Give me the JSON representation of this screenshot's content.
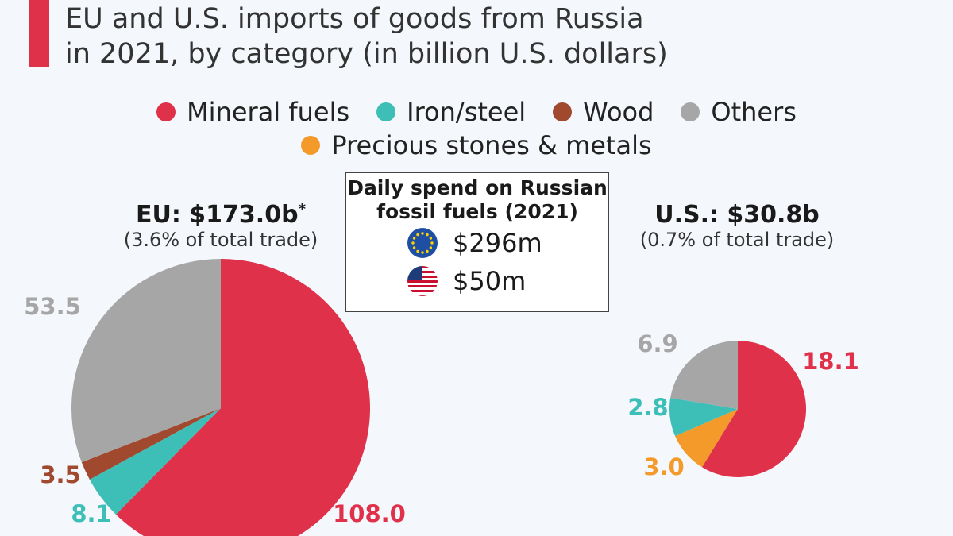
{
  "title": {
    "line1": "EU and U.S. imports of goods from Russia",
    "line2": "in 2021, by category (in billion U.S. dollars)"
  },
  "legend": [
    {
      "label": "Mineral fuels",
      "color": "#e0314a"
    },
    {
      "label": "Iron/steel",
      "color": "#3dbfb8"
    },
    {
      "label": "Wood",
      "color": "#a0492f"
    },
    {
      "label": "Others",
      "color": "#a6a6a6"
    },
    {
      "label": "Precious stones & metals",
      "color": "#f39a2b"
    }
  ],
  "info_box": {
    "title_line1": "Daily spend on Russian",
    "title_line2": "fossil fuels (2021)",
    "eu_value": "$296m",
    "us_value": "$50m",
    "eu_icon": "eu-flag-icon",
    "us_icon": "us-flag-icon"
  },
  "chart_data": [
    {
      "type": "pie",
      "title": "EU: $173.0b",
      "title_note": "*",
      "subtitle": "(3.6% of total trade)",
      "slices": [
        {
          "label": "Mineral fuels",
          "value": 108.0,
          "display": "108.0",
          "color": "#e0314a",
          "label_color": "#e0314a"
        },
        {
          "label": "Iron/steel",
          "value": 8.1,
          "display": "8.1",
          "color": "#3dbfb8",
          "label_color": "#3dbfb8"
        },
        {
          "label": "Wood",
          "value": 3.5,
          "display": "3.5",
          "color": "#a0492f",
          "label_color": "#a0492f"
        },
        {
          "label": "Others",
          "value": 53.5,
          "display": "53.5",
          "color": "#a6a6a6",
          "label_color": "#a6a6a6"
        }
      ]
    },
    {
      "type": "pie",
      "title": "U.S.: $30.8b",
      "subtitle": "(0.7% of total trade)",
      "slices": [
        {
          "label": "Mineral fuels",
          "value": 18.1,
          "display": "18.1",
          "color": "#e0314a",
          "label_color": "#e0314a"
        },
        {
          "label": "Precious stones & metals",
          "value": 3.0,
          "display": "3.0",
          "color": "#f39a2b",
          "label_color": "#f39a2b"
        },
        {
          "label": "Iron/steel",
          "value": 2.8,
          "display": "2.8",
          "color": "#3dbfb8",
          "label_color": "#3dbfb8"
        },
        {
          "label": "Others",
          "value": 6.9,
          "display": "6.9",
          "color": "#a6a6a6",
          "label_color": "#a6a6a6"
        }
      ]
    }
  ]
}
